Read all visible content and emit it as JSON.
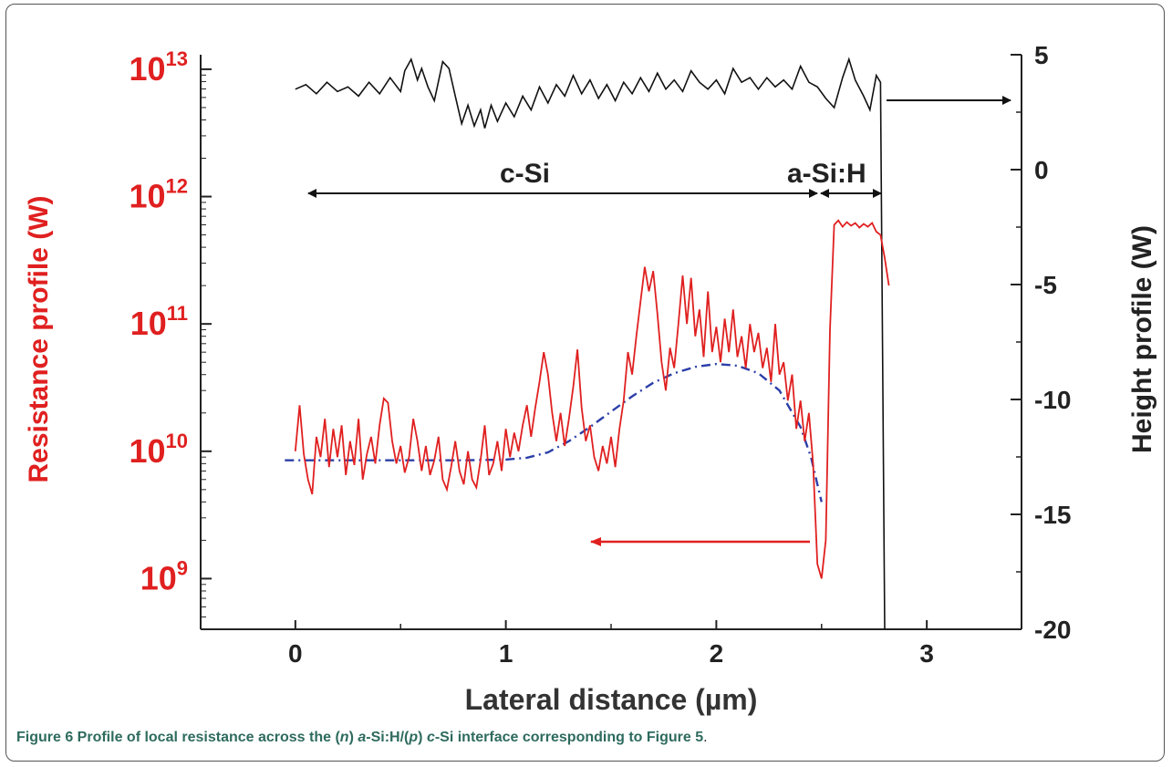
{
  "chart_data": {
    "type": "line",
    "title": "",
    "xlabel": "Lateral distance (µm)",
    "ylabel_left": "Resistance profile (W)",
    "ylabel_right": "Height profile (W)",
    "xlim": [
      -0.45,
      3.45
    ],
    "ylim_left": [
      400000000,
      13000000000000
    ],
    "ylim_right": [
      -20,
      5
    ],
    "y_scale_left": "log",
    "x_ticks": [
      "0",
      "1",
      "2",
      "3"
    ],
    "x_tick_values": [
      0,
      1,
      2,
      3
    ],
    "y_ticks_left": [
      {
        "base": "10",
        "exp": "13",
        "value": 10000000000000
      },
      {
        "base": "10",
        "exp": "12",
        "value": 1000000000000
      },
      {
        "base": "10",
        "exp": "11",
        "value": 100000000000
      },
      {
        "base": "10",
        "exp": "10",
        "value": 10000000000
      },
      {
        "base": "10",
        "exp": "9",
        "value": 1000000000
      }
    ],
    "y_ticks_right": [
      "5",
      "0",
      "-5",
      "-10",
      "-15",
      "-20"
    ],
    "y_tick_values_right": [
      5,
      0,
      -5,
      -10,
      -15,
      -20
    ],
    "grid": false,
    "annotations": {
      "c_si": "c-Si",
      "a_si_h": "a-Si:H"
    },
    "series": [
      {
        "role": "resistance",
        "color": "#e02020",
        "axis": "left",
        "points": [
          [
            0,
            10000000000.0
          ],
          [
            0.02,
            23000000000.0
          ],
          [
            0.04,
            9500000000.0
          ],
          [
            0.06,
            6000000000.0
          ],
          [
            0.08,
            4600000000.0
          ],
          [
            0.1,
            13000000000.0
          ],
          [
            0.12,
            9000000000.0
          ],
          [
            0.14,
            18000000000.0
          ],
          [
            0.16,
            7500000000.0
          ],
          [
            0.18,
            15000000000.0
          ],
          [
            0.2,
            9000000000.0
          ],
          [
            0.22,
            16000000000.0
          ],
          [
            0.24,
            6500000000.0
          ],
          [
            0.26,
            12000000000.0
          ],
          [
            0.28,
            7800000000.0
          ],
          [
            0.3,
            18000000000.0
          ],
          [
            0.32,
            6000000000.0
          ],
          [
            0.34,
            9500000000.0
          ],
          [
            0.36,
            13000000000.0
          ],
          [
            0.38,
            8000000000.0
          ],
          [
            0.4,
            16000000000.0
          ],
          [
            0.42,
            26000000000.0
          ],
          [
            0.44,
            24000000000.0
          ],
          [
            0.46,
            12000000000.0
          ],
          [
            0.48,
            8000000000.0
          ],
          [
            0.5,
            11000000000.0
          ],
          [
            0.52,
            6800000000.0
          ],
          [
            0.54,
            9000000000.0
          ],
          [
            0.56,
            18000000000.0
          ],
          [
            0.58,
            12000000000.0
          ],
          [
            0.6,
            7000000000.0
          ],
          [
            0.62,
            11000000000.0
          ],
          [
            0.64,
            6500000000.0
          ],
          [
            0.66,
            8500000000.0
          ],
          [
            0.68,
            13000000000.0
          ],
          [
            0.7,
            6000000000.0
          ],
          [
            0.72,
            5000000000.0
          ],
          [
            0.74,
            7500000000.0
          ],
          [
            0.76,
            12000000000.0
          ],
          [
            0.78,
            7000000000.0
          ],
          [
            0.8,
            5500000000.0
          ],
          [
            0.82,
            10000000000.0
          ],
          [
            0.84,
            6000000000.0
          ],
          [
            0.86,
            5200000000.0
          ],
          [
            0.88,
            8500000000.0
          ],
          [
            0.9,
            16000000000.0
          ],
          [
            0.92,
            6500000000.0
          ],
          [
            0.94,
            8000000000.0
          ],
          [
            0.96,
            12000000000.0
          ],
          [
            0.98,
            7000000000.0
          ],
          [
            1.0,
            15000000000.0
          ],
          [
            1.02,
            9000000000.0
          ],
          [
            1.04,
            14000000000.0
          ],
          [
            1.06,
            10000000000.0
          ],
          [
            1.08,
            16000000000.0
          ],
          [
            1.1,
            23000000000.0
          ],
          [
            1.12,
            13000000000.0
          ],
          [
            1.14,
            22000000000.0
          ],
          [
            1.16,
            35000000000.0
          ],
          [
            1.18,
            60000000000.0
          ],
          [
            1.2,
            40000000000.0
          ],
          [
            1.22,
            20000000000.0
          ],
          [
            1.24,
            12000000000.0
          ],
          [
            1.26,
            20000000000.0
          ],
          [
            1.28,
            11000000000.0
          ],
          [
            1.3,
            18000000000.0
          ],
          [
            1.32,
            32000000000.0
          ],
          [
            1.34,
            63000000000.0
          ],
          [
            1.36,
            22000000000.0
          ],
          [
            1.38,
            12000000000.0
          ],
          [
            1.4,
            16000000000.0
          ],
          [
            1.42,
            9000000000.0
          ],
          [
            1.44,
            7000000000.0
          ],
          [
            1.46,
            11000000000.0
          ],
          [
            1.48,
            8000000000.0
          ],
          [
            1.5,
            13000000000.0
          ],
          [
            1.52,
            7500000000.0
          ],
          [
            1.54,
            15000000000.0
          ],
          [
            1.56,
            25000000000.0
          ],
          [
            1.58,
            60000000000.0
          ],
          [
            1.6,
            40000000000.0
          ],
          [
            1.62,
            80000000000.0
          ],
          [
            1.64,
            150000000000.0
          ],
          [
            1.66,
            280000000000.0
          ],
          [
            1.68,
            180000000000.0
          ],
          [
            1.7,
            260000000000.0
          ],
          [
            1.72,
            120000000000.0
          ],
          [
            1.74,
            50000000000.0
          ],
          [
            1.76,
            30000000000.0
          ],
          [
            1.78,
            65000000000.0
          ],
          [
            1.8,
            45000000000.0
          ],
          [
            1.82,
            100000000000.0
          ],
          [
            1.84,
            240000000000.0
          ],
          [
            1.86,
            100000000000.0
          ],
          [
            1.88,
            230000000000.0
          ],
          [
            1.9,
            80000000000.0
          ],
          [
            1.92,
            130000000000.0
          ],
          [
            1.94,
            55000000000.0
          ],
          [
            1.96,
            180000000000.0
          ],
          [
            1.98,
            60000000000.0
          ],
          [
            2.0,
            95000000000.0
          ],
          [
            2.02,
            50000000000.0
          ],
          [
            2.04,
            110000000000.0
          ],
          [
            2.06,
            60000000000.0
          ],
          [
            2.08,
            130000000000.0
          ],
          [
            2.1,
            55000000000.0
          ],
          [
            2.12,
            80000000000.0
          ],
          [
            2.14,
            45000000000.0
          ],
          [
            2.16,
            100000000000.0
          ],
          [
            2.18,
            60000000000.0
          ],
          [
            2.2,
            85000000000.0
          ],
          [
            2.22,
            45000000000.0
          ],
          [
            2.24,
            65000000000.0
          ],
          [
            2.26,
            35000000000.0
          ],
          [
            2.28,
            100000000000.0
          ],
          [
            2.3,
            40000000000.0
          ],
          [
            2.32,
            50000000000.0
          ],
          [
            2.34,
            25000000000.0
          ],
          [
            2.36,
            40000000000.0
          ],
          [
            2.38,
            15000000000.0
          ],
          [
            2.4,
            25000000000.0
          ],
          [
            2.42,
            12000000000.0
          ],
          [
            2.44,
            20000000000.0
          ],
          [
            2.46,
            8000000000.0
          ],
          [
            2.48,
            1300000000.0
          ],
          [
            2.5,
            1000000000.0
          ],
          [
            2.52,
            2000000000.0
          ],
          [
            2.54,
            90000000000.0
          ],
          [
            2.56,
            600000000000.0
          ],
          [
            2.58,
            650000000000.0
          ],
          [
            2.6,
            580000000000.0
          ],
          [
            2.62,
            630000000000.0
          ],
          [
            2.64,
            590000000000.0
          ],
          [
            2.66,
            620000000000.0
          ],
          [
            2.68,
            570000000000.0
          ],
          [
            2.7,
            610000000000.0
          ],
          [
            2.72,
            580000000000.0
          ],
          [
            2.74,
            620000000000.0
          ],
          [
            2.76,
            530000000000.0
          ],
          [
            2.78,
            500000000000.0
          ],
          [
            2.8,
            330000000000.0
          ],
          [
            2.82,
            200000000000.0
          ]
        ]
      },
      {
        "role": "fit",
        "color": "#2c3fa8",
        "axis": "left",
        "points": [
          [
            -0.05,
            8500000000.0
          ],
          [
            0.2,
            8500000000.0
          ],
          [
            0.4,
            8500000000.0
          ],
          [
            0.6,
            8500000000.0
          ],
          [
            0.8,
            8500000000.0
          ],
          [
            1.0,
            8600000000.0
          ],
          [
            1.1,
            8900000000.0
          ],
          [
            1.2,
            9800000000.0
          ],
          [
            1.3,
            12000000000.0
          ],
          [
            1.4,
            15500000000.0
          ],
          [
            1.5,
            20500000000.0
          ],
          [
            1.6,
            27000000000.0
          ],
          [
            1.7,
            34500000000.0
          ],
          [
            1.8,
            41000000000.0
          ],
          [
            1.9,
            46000000000.0
          ],
          [
            2.0,
            48500000000.0
          ],
          [
            2.1,
            47000000000.0
          ],
          [
            2.2,
            41000000000.0
          ],
          [
            2.3,
            30000000000.0
          ],
          [
            2.4,
            15500000000.0
          ],
          [
            2.45,
            9000000000.0
          ],
          [
            2.48,
            5500000000.0
          ],
          [
            2.5,
            4000000000.0
          ]
        ]
      },
      {
        "role": "height",
        "color": "#111111",
        "axis": "right",
        "points": [
          [
            0,
            3.5
          ],
          [
            0.05,
            3.7
          ],
          [
            0.1,
            3.3
          ],
          [
            0.15,
            3.8
          ],
          [
            0.2,
            3.4
          ],
          [
            0.25,
            3.6
          ],
          [
            0.3,
            3.2
          ],
          [
            0.35,
            3.8
          ],
          [
            0.4,
            3.3
          ],
          [
            0.45,
            4.0
          ],
          [
            0.5,
            3.4
          ],
          [
            0.52,
            4.3
          ],
          [
            0.55,
            4.8
          ],
          [
            0.58,
            3.9
          ],
          [
            0.6,
            4.4
          ],
          [
            0.63,
            3.6
          ],
          [
            0.66,
            3.0
          ],
          [
            0.7,
            4.7
          ],
          [
            0.73,
            4.4
          ],
          [
            0.76,
            3.2
          ],
          [
            0.79,
            2.0
          ],
          [
            0.82,
            2.8
          ],
          [
            0.85,
            1.9
          ],
          [
            0.88,
            2.6
          ],
          [
            0.9,
            1.8
          ],
          [
            0.93,
            2.8
          ],
          [
            0.96,
            2.1
          ],
          [
            1.0,
            2.9
          ],
          [
            1.04,
            2.3
          ],
          [
            1.08,
            3.2
          ],
          [
            1.12,
            2.6
          ],
          [
            1.16,
            3.6
          ],
          [
            1.2,
            2.9
          ],
          [
            1.24,
            3.7
          ],
          [
            1.28,
            3.2
          ],
          [
            1.32,
            4.1
          ],
          [
            1.36,
            3.3
          ],
          [
            1.4,
            3.9
          ],
          [
            1.44,
            3.1
          ],
          [
            1.48,
            3.7
          ],
          [
            1.52,
            3.0
          ],
          [
            1.56,
            3.8
          ],
          [
            1.6,
            3.3
          ],
          [
            1.64,
            4.0
          ],
          [
            1.68,
            3.4
          ],
          [
            1.72,
            4.2
          ],
          [
            1.76,
            3.5
          ],
          [
            1.8,
            3.9
          ],
          [
            1.84,
            3.4
          ],
          [
            1.88,
            4.3
          ],
          [
            1.92,
            3.8
          ],
          [
            1.96,
            3.5
          ],
          [
            2.0,
            3.9
          ],
          [
            2.04,
            3.3
          ],
          [
            2.08,
            4.4
          ],
          [
            2.12,
            3.8
          ],
          [
            2.16,
            4.0
          ],
          [
            2.2,
            3.5
          ],
          [
            2.24,
            4.0
          ],
          [
            2.28,
            3.6
          ],
          [
            2.32,
            3.9
          ],
          [
            2.36,
            3.5
          ],
          [
            2.4,
            4.5
          ],
          [
            2.44,
            3.8
          ],
          [
            2.48,
            3.6
          ],
          [
            2.52,
            3.1
          ],
          [
            2.56,
            2.7
          ],
          [
            2.6,
            4.0
          ],
          [
            2.63,
            4.8
          ],
          [
            2.66,
            3.9
          ],
          [
            2.7,
            3.2
          ],
          [
            2.73,
            2.6
          ],
          [
            2.76,
            4.1
          ],
          [
            2.78,
            3.8
          ],
          [
            2.8,
            -20
          ]
        ]
      }
    ]
  },
  "caption": {
    "label": "Figure 6",
    "text_1": " Profile of local resistance across the (",
    "n": "n",
    "text_2": ") ",
    "a": "a",
    "text_3": "-Si:H/(",
    "p": "p",
    "text_4": ") ",
    "c": "c",
    "text_5": "-Si interface corresponding to Figure 5",
    "end": "."
  }
}
